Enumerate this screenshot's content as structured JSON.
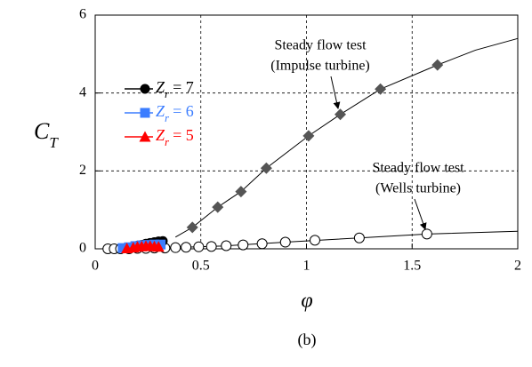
{
  "chart_data": {
    "type": "scatter",
    "xlabel": "φ",
    "ylabel": [
      "C",
      "T"
    ],
    "caption": "(b)",
    "xlim": [
      0,
      2
    ],
    "ylim": [
      0,
      6
    ],
    "xticks": [
      0,
      0.5,
      1,
      1.5,
      2
    ],
    "yticks": [
      0,
      2,
      4,
      6
    ],
    "grid": true,
    "annotations": [
      {
        "lines": [
          "Steady flow test",
          "(Impulse turbine)"
        ]
      },
      {
        "lines": [
          "Steady flow test",
          "(Wells turbine)"
        ]
      }
    ],
    "series": [
      {
        "marker": "none",
        "color": "#000000",
        "x": [
          0.38,
          0.46,
          0.58,
          0.69,
          0.81,
          1.01,
          1.16,
          1.35,
          1.62,
          1.8,
          2
        ],
        "values": [
          0.3,
          0.55,
          1.07,
          1.47,
          2.07,
          2.9,
          3.45,
          4.1,
          4.72,
          5.1,
          5.4
        ]
      },
      {
        "marker": "none",
        "color": "#000000",
        "x": [
          0.06,
          0.3,
          0.6,
          0.9,
          1.25,
          1.57,
          2
        ],
        "values": [
          0,
          0.02,
          0.07,
          0.17,
          0.28,
          0.38,
          0.45
        ]
      },
      {
        "marker": "open-circle",
        "color": "#000000",
        "x": [
          0.06,
          0.09,
          0.12,
          0.16,
          0.2,
          0.24,
          0.28,
          0.33,
          0.38,
          0.43,
          0.49,
          0.55,
          0.62,
          0.7,
          0.79,
          0.9,
          1.04,
          1.25,
          1.57
        ],
        "values": [
          0,
          0,
          0,
          0,
          0.01,
          0.01,
          0.02,
          0.02,
          0.03,
          0.04,
          0.05,
          0.06,
          0.08,
          0.1,
          0.13,
          0.17,
          0.22,
          0.28,
          0.38
        ]
      },
      {
        "marker": "diamond",
        "color": "#555555",
        "x": [
          0.46,
          0.58,
          0.69,
          0.81,
          1.01,
          1.16,
          1.35,
          1.62
        ],
        "values": [
          0.55,
          1.07,
          1.47,
          2.07,
          2.9,
          3.45,
          4.1,
          4.72
        ]
      },
      {
        "name": [
          "Z",
          "r",
          "= 7"
        ],
        "marker": "circle",
        "color": "#000000",
        "x": [
          0.15,
          0.18,
          0.2,
          0.22,
          0.24,
          0.26,
          0.28,
          0.3,
          0.32
        ],
        "values": [
          0.02,
          0.05,
          0.08,
          0.1,
          0.13,
          0.15,
          0.17,
          0.19,
          0.2
        ]
      },
      {
        "name": [
          "Z",
          "r",
          "= 6"
        ],
        "marker": "square",
        "color": "#3b7dff",
        "x": [
          0.13,
          0.16,
          0.19,
          0.22,
          0.25,
          0.28,
          0.31
        ],
        "values": [
          0.02,
          0.04,
          0.07,
          0.09,
          0.1,
          0.11,
          0.11
        ]
      },
      {
        "name": [
          "Z",
          "r",
          "= 5"
        ],
        "marker": "triangle",
        "color": "#ff0000",
        "x": [
          0.15,
          0.18,
          0.2,
          0.22,
          0.24,
          0.26,
          0.28,
          0.3
        ],
        "values": [
          0.01,
          0.03,
          0.05,
          0.06,
          0.07,
          0.07,
          0.06,
          0.05
        ]
      }
    ]
  }
}
